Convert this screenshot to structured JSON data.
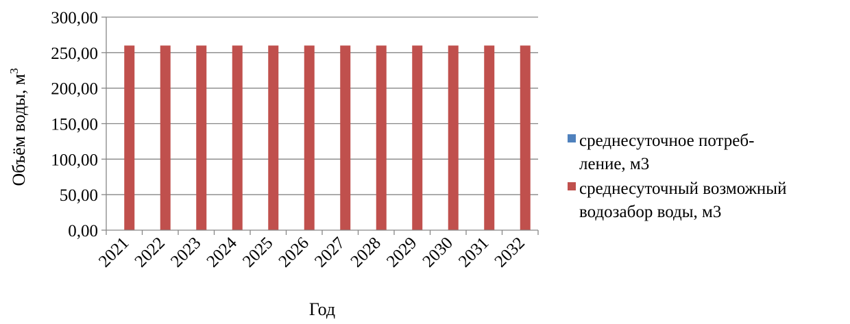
{
  "chart_data": {
    "type": "bar",
    "categories": [
      "2021",
      "2022",
      "2023",
      "2024",
      "2025",
      "2026",
      "2027",
      "2028",
      "2029",
      "2030",
      "2031",
      "2032"
    ],
    "series": [
      {
        "name": "среднесуточное потребление, м3",
        "legend_lines": [
          "среднесуточное потреб-",
          "ление, м3"
        ],
        "color": "#4F81BD",
        "values": [
          0,
          0,
          0,
          0,
          0,
          0,
          0,
          0,
          0,
          0,
          0,
          0
        ]
      },
      {
        "name": "среднесуточный возможный водозабор воды,  м3",
        "legend_lines": [
          "среднесуточный возможный",
          "водозабор воды,  м3"
        ],
        "color": "#C0504D",
        "values": [
          260,
          260,
          260,
          260,
          260,
          260,
          260,
          260,
          260,
          260,
          260,
          260
        ]
      }
    ],
    "xlabel": "Год",
    "ylabel": "Объём воды,  м",
    "ylabel_sup": "3",
    "ylim": [
      0,
      300
    ],
    "yticks": [
      0,
      50,
      100,
      150,
      200,
      250,
      300
    ],
    "ytick_labels": [
      "0,00",
      "50,00",
      "100,00",
      "150,00",
      "200,00",
      "250,00",
      "300,00"
    ],
    "grid": true,
    "legend_position": "right"
  }
}
